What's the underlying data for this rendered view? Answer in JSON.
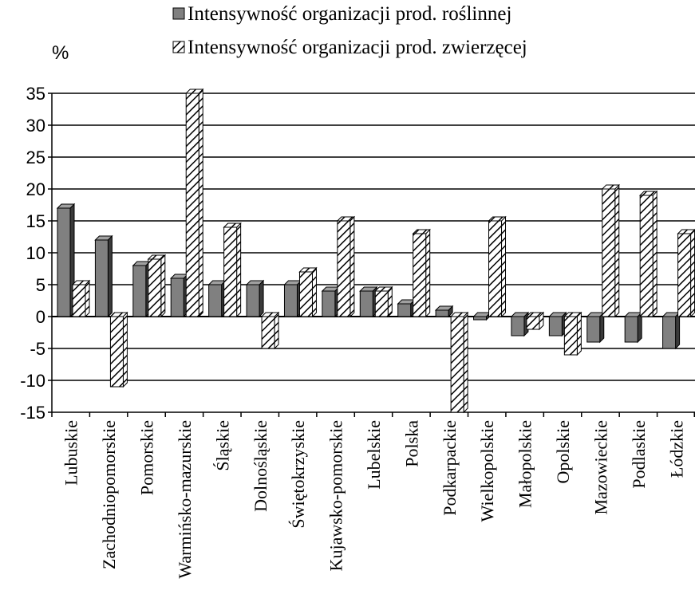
{
  "chart_data": {
    "type": "bar",
    "unit_label": "%",
    "categories": [
      "Lubuskie",
      "Zachodniopomorskie",
      "Pomorskie",
      "Warmińsko-mazurskie",
      "Śląskie",
      "Dolnośląskie",
      "Świętokrzyskie",
      "Kujawsko-pomorskie",
      "Lubelskie",
      "Polska",
      "Podkarpackie",
      "Wielkopolskie",
      "Małopolskie",
      "Opolskie",
      "Mazowieckie",
      "Podlaskie",
      "Łódzkie"
    ],
    "series": [
      {
        "name": "Intensywność organizacji prod. roślinnej",
        "style": "solid-gray",
        "values": [
          17,
          12,
          8,
          6,
          5,
          5,
          5,
          4,
          4,
          2,
          1,
          -0.5,
          -3,
          -3,
          -4,
          -4,
          -5
        ]
      },
      {
        "name": "Intensywność organizacji prod. zwierzęcej",
        "style": "hatched",
        "values": [
          5,
          -11,
          9,
          35,
          14,
          -5,
          7,
          15,
          4,
          13,
          -15,
          15,
          -2,
          -6,
          20,
          19,
          13
        ]
      }
    ],
    "ylim": [
      -15,
      35
    ],
    "yticks": [
      "35",
      "30",
      "25",
      "20",
      "15",
      "10",
      "5",
      "0",
      "-5",
      "-10",
      "-15"
    ],
    "grid": true,
    "legend_position": "top",
    "colors": {
      "solid_front": "#808080",
      "solid_side": "#3a3a3a",
      "hatch_fill": "#ffffff",
      "hatch_stroke": "#000000",
      "grid": "#000000"
    }
  }
}
